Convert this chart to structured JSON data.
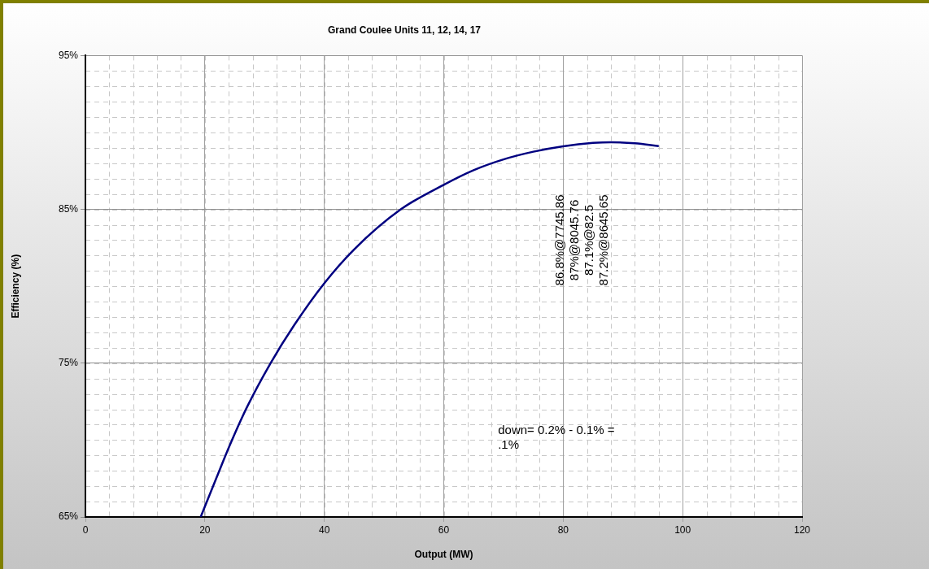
{
  "chart_data": {
    "type": "line",
    "title": "Grand Coulee Units 11, 12, 14, 17",
    "xlabel": "Output (MW)",
    "ylabel": "Efficiency (%)",
    "series": [
      {
        "color": "#000080",
        "x": [
          19.3,
          22,
          24.1,
          27,
          31,
          35,
          40,
          45,
          52.8,
          60,
          65,
          70,
          75,
          80,
          85,
          88,
          92,
          96
        ],
        "values": [
          65,
          67.6,
          69.6,
          72.1,
          75,
          77.5,
          80.2,
          82.4,
          85,
          86.6,
          87.55,
          88.25,
          88.75,
          89.1,
          89.32,
          89.37,
          89.3,
          89.12
        ]
      }
    ],
    "xlim": [
      0,
      120
    ],
    "xticks": [
      0,
      20,
      40,
      60,
      80,
      100,
      120
    ],
    "ylim": [
      65,
      95
    ],
    "yticks": [
      {
        "value": 65,
        "label": "65%"
      },
      {
        "value": 75,
        "label": "75%"
      },
      {
        "value": 85,
        "label": "85%"
      },
      {
        "value": 95,
        "label": "95%"
      }
    ],
    "annotations": [
      "86.8%@7745.86",
      "87%@8045.76",
      "87.1%@82.5",
      "87.2%@8645.65",
      "down= 0.2% - 0.1% = .1%"
    ],
    "grid": true,
    "legend": false,
    "marker": "none",
    "line_style": "solid"
  }
}
